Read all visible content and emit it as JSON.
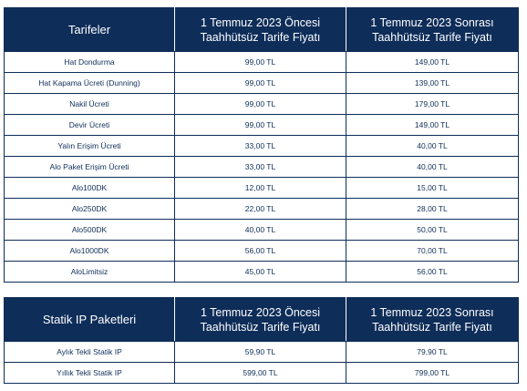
{
  "table1": {
    "headers": [
      "Tarifeler",
      "1 Temmuz 2023 Öncesi\nTaahhütsüz Tarife Fiyatı",
      "1 Temmuz 2023 Sonrası\nTaahhütsüz Tarife Fiyatı"
    ],
    "rows": [
      [
        "Hat Dondurma",
        "99,00 TL",
        "149,00 TL"
      ],
      [
        "Hat Kapama Ücreti (Dunning)",
        "99,00 TL",
        "139,00 TL"
      ],
      [
        "Nakil Ücreti",
        "99,00 TL",
        "179,00 TL"
      ],
      [
        "Devir Ücreti",
        "99,00 TL",
        "149,00 TL"
      ],
      [
        "Yalın Erişim Ücreti",
        "33,00 TL",
        "40,00 TL"
      ],
      [
        "Alo Paket Erişim Ücreti",
        "33,00 TL",
        "40,00 TL"
      ],
      [
        "Alo100DK",
        "12,00 TL",
        "15,00 TL"
      ],
      [
        "Alo250DK",
        "22,00 TL",
        "28,00 TL"
      ],
      [
        "Alo500DK",
        "40,00 TL",
        "50,00 TL"
      ],
      [
        "Alo1000DK",
        "56,00 TL",
        "70,00 TL"
      ],
      [
        "AloLimitsiz",
        "45,00 TL",
        "56,00 TL"
      ]
    ]
  },
  "table2": {
    "headers": [
      "Statik IP Paketleri",
      "1 Temmuz 2023 Öncesi\nTaahhütsüz Tarife Fiyatı",
      "1 Temmuz 2023 Sonrası\nTaahhütsüz Tarife Fiyatı"
    ],
    "rows": [
      [
        "Aylık Tekli Statik IP",
        "59,90 TL",
        "79,90 TL"
      ],
      [
        "Yıllık Tekli Statik IP",
        "599,00 TL",
        "799,00 TL"
      ]
    ]
  },
  "colors": {
    "header_bg": "#0e2d59",
    "header_text": "#ffffff",
    "cell_text": "#0e2d59",
    "border": "#0e2d59"
  }
}
